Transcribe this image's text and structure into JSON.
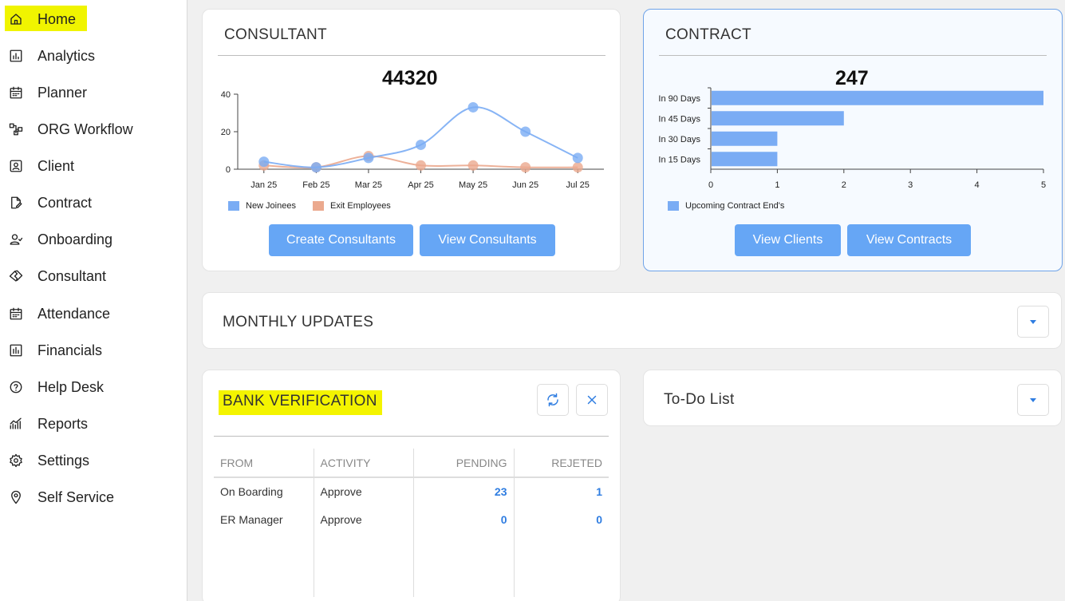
{
  "sidebar": {
    "items": [
      {
        "label": "Home",
        "icon": "home-icon"
      },
      {
        "label": "Analytics",
        "icon": "analytics-icon"
      },
      {
        "label": "Planner",
        "icon": "calendar-icon"
      },
      {
        "label": "ORG Workflow",
        "icon": "workflow-icon"
      },
      {
        "label": "Client",
        "icon": "client-icon"
      },
      {
        "label": "Contract",
        "icon": "contract-icon"
      },
      {
        "label": "Onboarding",
        "icon": "onboarding-icon"
      },
      {
        "label": "Consultant",
        "icon": "handshake-icon"
      },
      {
        "label": "Attendance",
        "icon": "calendar-icon"
      },
      {
        "label": "Financials",
        "icon": "financials-icon"
      },
      {
        "label": "Help Desk",
        "icon": "help-icon"
      },
      {
        "label": "Reports",
        "icon": "reports-icon"
      },
      {
        "label": "Settings",
        "icon": "gear-icon"
      },
      {
        "label": "Self Service",
        "icon": "location-icon"
      }
    ]
  },
  "consultant": {
    "title": "CONSULTANT",
    "total": "44320",
    "create_label": "Create Consultants",
    "view_label": "View Consultants"
  },
  "contract": {
    "title": "CONTRACT",
    "total": "247",
    "view_clients_label": "View Clients",
    "view_contracts_label": "View Contracts"
  },
  "monthly": {
    "title": "MONTHLY UPDATES"
  },
  "todo": {
    "title": "To-Do List"
  },
  "bank": {
    "title": "BANK VERIFICATION",
    "headers": [
      "FROM",
      "ACTIVITY",
      "PENDING",
      "REJETED"
    ],
    "rows": [
      [
        "On Boarding",
        "Approve",
        "23",
        "1"
      ],
      [
        "ER Manager",
        "Approve",
        "0",
        "0"
      ]
    ]
  },
  "colors": {
    "accent": "#66a6f5",
    "link": "#2f7de1",
    "series_a": "#7aacf4",
    "series_b": "#eba98e",
    "highlight": "#f4f400"
  },
  "chart_data": [
    {
      "type": "line",
      "categories": [
        "Jan 25",
        "Feb 25",
        "Mar 25",
        "Apr 25",
        "May 25",
        "Jun 25",
        "Jul 25"
      ],
      "series": [
        {
          "name": "New Joinees",
          "values": [
            4,
            1,
            6,
            13,
            33,
            20,
            6
          ],
          "color": "#7aacf4"
        },
        {
          "name": "Exit Employees",
          "values": [
            2,
            1,
            7,
            2,
            2,
            1,
            1
          ],
          "color": "#eba98e"
        }
      ],
      "yticks": [
        "0",
        "20",
        "40"
      ],
      "ylim": [
        0,
        40
      ],
      "title": "44320",
      "legend": "bottom-left",
      "grid": false
    },
    {
      "type": "bar",
      "orientation": "horizontal",
      "categories": [
        "In 90 Days",
        "In 45 Days",
        "In 30 Days",
        "In 15 Days"
      ],
      "series": [
        {
          "name": "Upcoming Contract End's",
          "values": [
            5,
            2,
            1,
            1
          ],
          "color": "#7aacf4"
        }
      ],
      "xticks": [
        "0",
        "1",
        "2",
        "3",
        "4",
        "5"
      ],
      "xlim": [
        0,
        5
      ],
      "title": "247",
      "legend": "bottom-left",
      "grid": false
    }
  ]
}
